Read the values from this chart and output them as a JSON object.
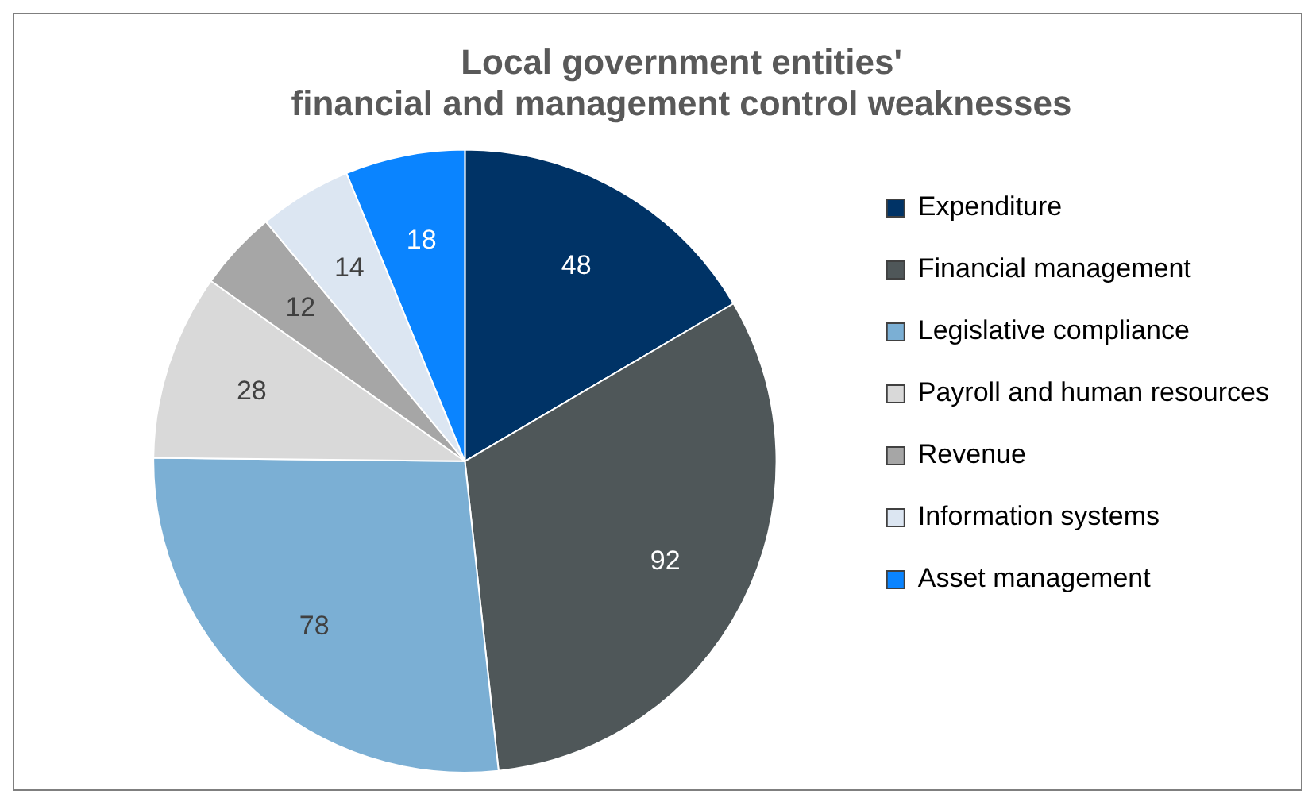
{
  "chart_data": {
    "type": "pie",
    "title": [
      "Local government entities'",
      "financial and management control weaknesses"
    ],
    "categories": [
      "Expenditure",
      "Financial management",
      "Legislative compliance",
      "Payroll and human resources",
      "Revenue",
      "Information systems",
      "Asset management"
    ],
    "values": [
      48,
      92,
      78,
      28,
      12,
      14,
      18
    ],
    "colors": [
      "#003366",
      "#4f5759",
      "#7bafd4",
      "#d9d9d9",
      "#a6a6a6",
      "#dce6f2",
      "#0a84ff"
    ],
    "data_labels": true,
    "legend": "right"
  }
}
